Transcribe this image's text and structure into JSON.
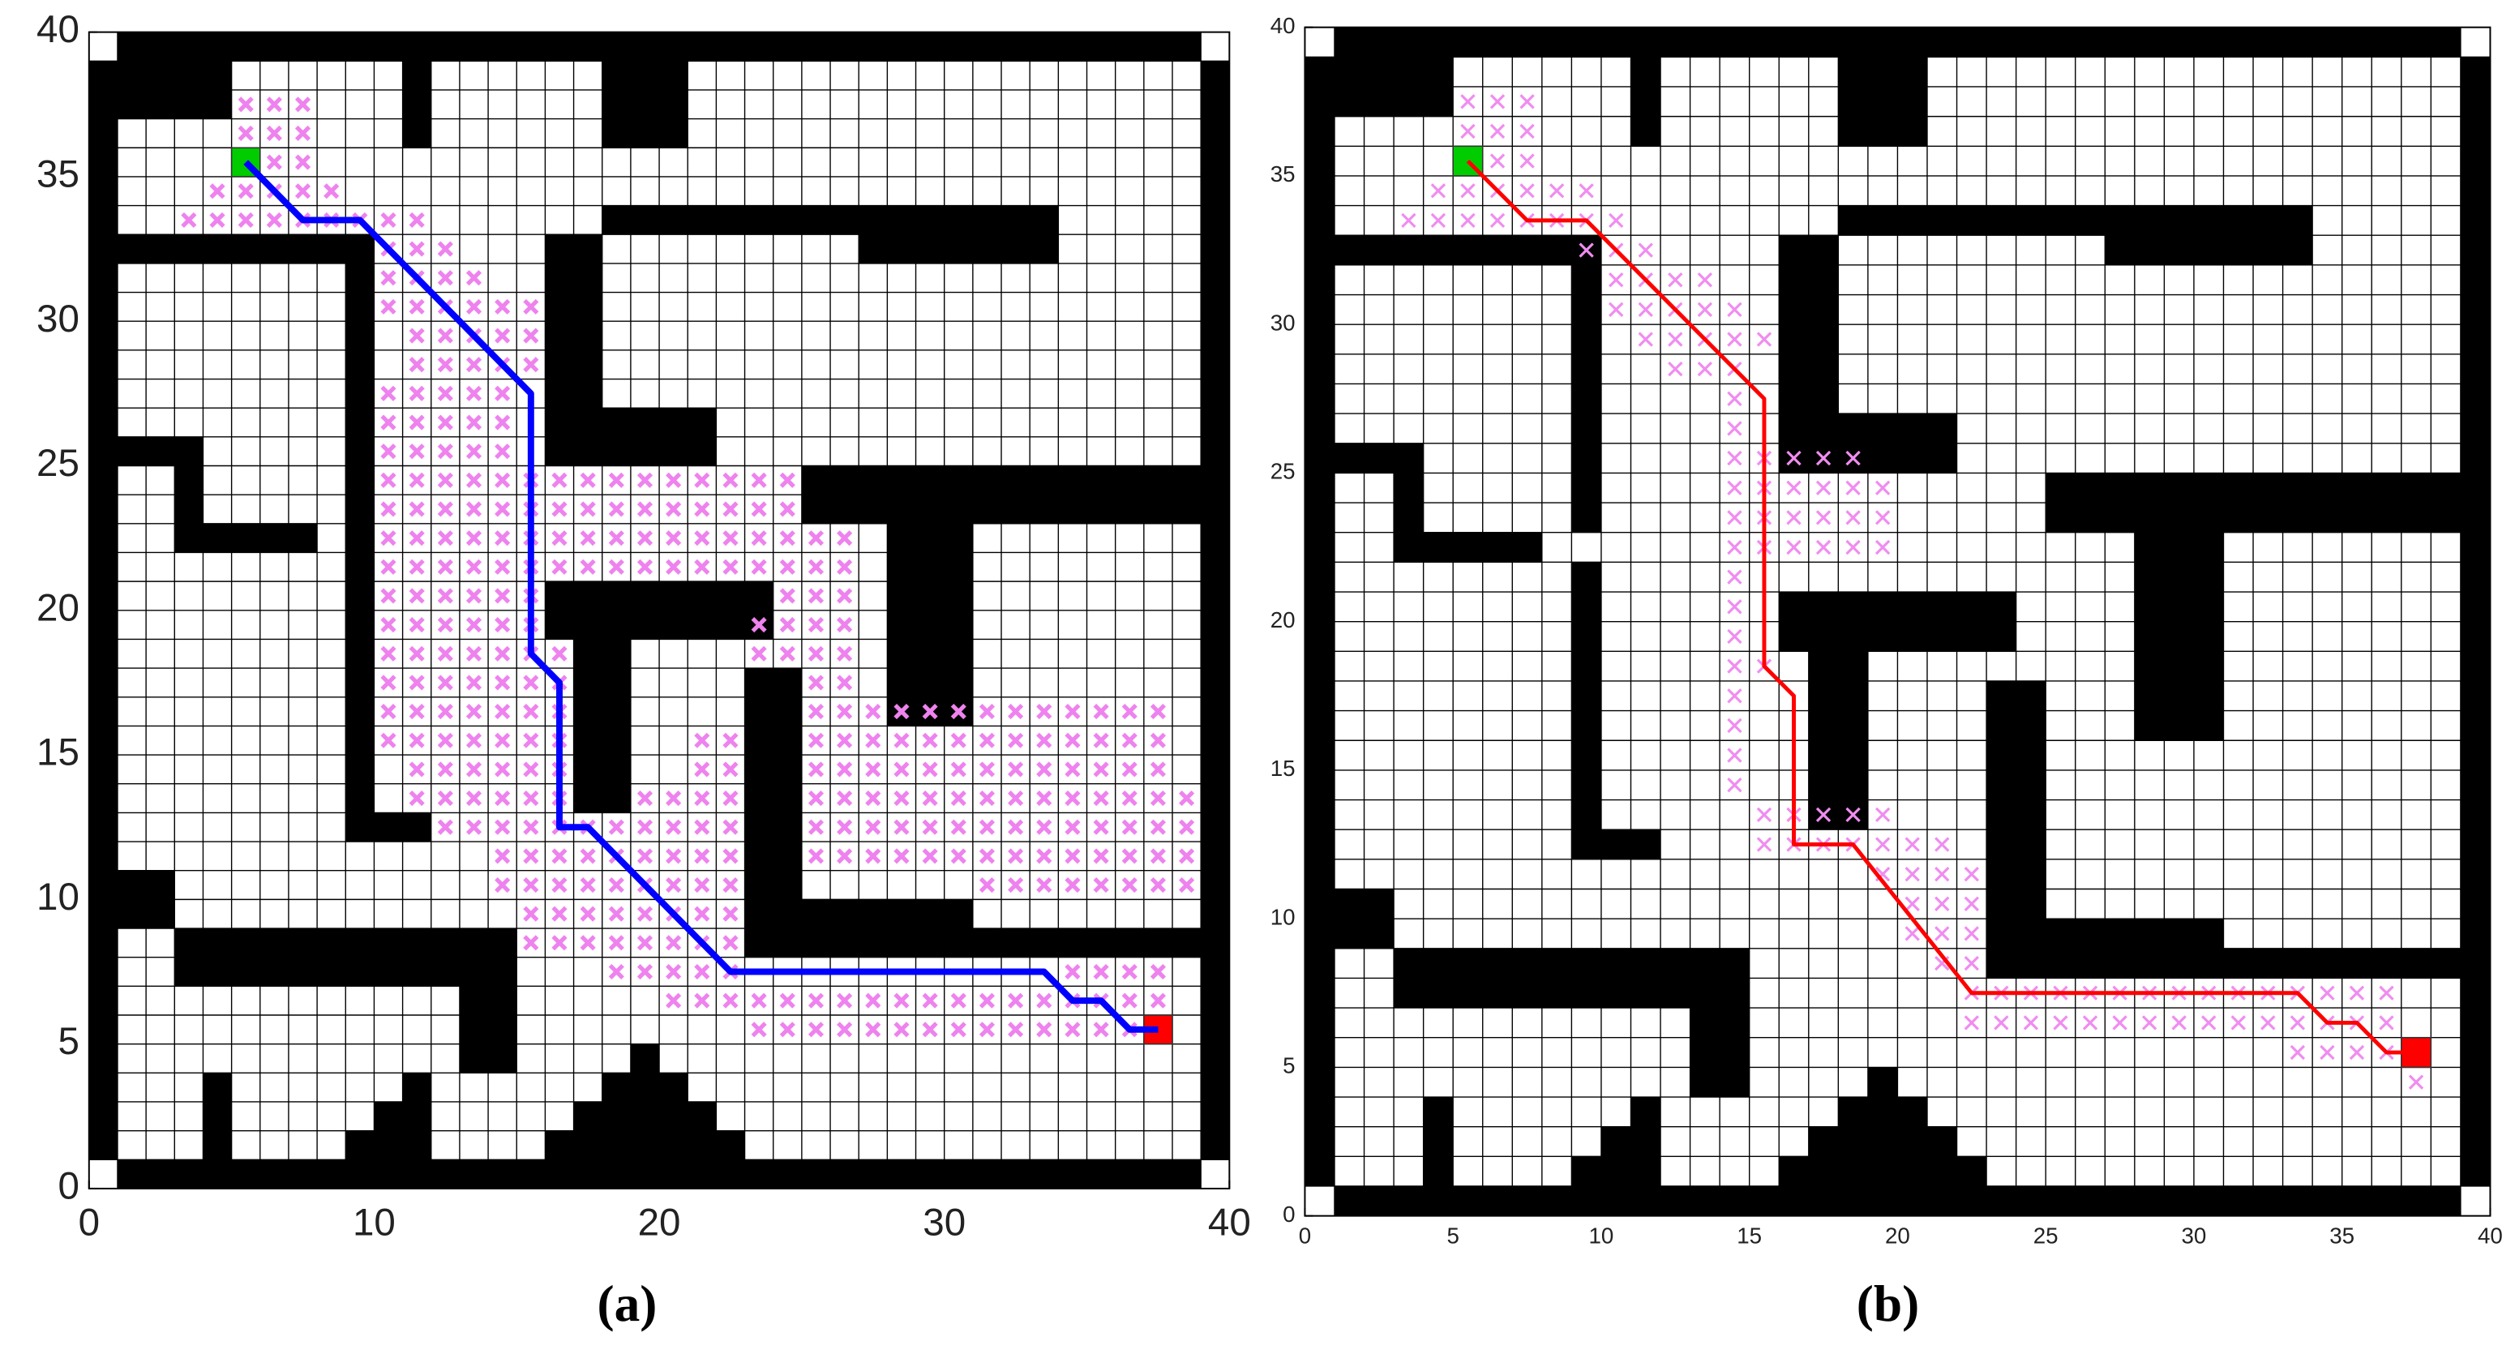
{
  "chart_data": [
    {
      "type": "grid-path",
      "label": "(a)",
      "xlim": [
        0,
        40
      ],
      "ylim": [
        0,
        40
      ],
      "xticks": [
        0,
        10,
        20,
        30,
        40
      ],
      "yticks": [
        0,
        5,
        10,
        15,
        20,
        25,
        30,
        35,
        40
      ],
      "obstacle_color": "#000000",
      "obstacles": [
        [
          1,
          39,
          39,
          40
        ],
        [
          0,
          1,
          1,
          39
        ],
        [
          1,
          0,
          39,
          1
        ],
        [
          39,
          1,
          40,
          39
        ],
        [
          1,
          37,
          5,
          39
        ],
        [
          11,
          36,
          12,
          39
        ],
        [
          18,
          36,
          21,
          39
        ],
        [
          18,
          33,
          34,
          34
        ],
        [
          27,
          32,
          34,
          33
        ],
        [
          1,
          32,
          10,
          33
        ],
        [
          9,
          12,
          10,
          32
        ],
        [
          9,
          12,
          12,
          13
        ],
        [
          16,
          25,
          18,
          33
        ],
        [
          16,
          25,
          22,
          27
        ],
        [
          1,
          25,
          4,
          26
        ],
        [
          3,
          22,
          4,
          25
        ],
        [
          3,
          22,
          8,
          23
        ],
        [
          25,
          23,
          39,
          25
        ],
        [
          28,
          16,
          31,
          23
        ],
        [
          16,
          19,
          24,
          21
        ],
        [
          17,
          13,
          19,
          19
        ],
        [
          23,
          8,
          25,
          18
        ],
        [
          23,
          8,
          39,
          9
        ],
        [
          23,
          9,
          31,
          10
        ],
        [
          1,
          9,
          3,
          11
        ],
        [
          3,
          7,
          15,
          9
        ],
        [
          13,
          4,
          15,
          7
        ],
        [
          4,
          1,
          5,
          4
        ],
        [
          9,
          1,
          12,
          2
        ],
        [
          10,
          1,
          12,
          3
        ],
        [
          11,
          1,
          12,
          4
        ],
        [
          16,
          1,
          23,
          2
        ],
        [
          17,
          1,
          22,
          3
        ],
        [
          18,
          1,
          21,
          4
        ],
        [
          19,
          1,
          20,
          5
        ]
      ],
      "visited_color": "#ee82ee",
      "visited": [
        [
          37,
          5,
          7
        ],
        [
          36,
          5,
          7
        ],
        [
          35,
          6,
          7
        ],
        [
          34,
          4,
          8
        ],
        [
          33,
          3,
          11
        ],
        [
          32,
          10,
          12
        ],
        [
          31,
          10,
          13
        ],
        [
          30,
          10,
          15
        ],
        [
          29,
          11,
          15
        ],
        [
          28,
          11,
          15
        ],
        [
          27,
          10,
          14
        ],
        [
          26,
          10,
          14
        ],
        [
          25,
          10,
          14
        ],
        [
          24,
          10,
          24
        ],
        [
          23,
          10,
          24
        ],
        [
          22,
          10,
          26
        ],
        [
          21,
          10,
          26
        ],
        [
          20,
          10,
          15
        ],
        [
          20,
          24,
          26
        ],
        [
          19,
          10,
          15
        ],
        [
          19,
          23,
          26
        ],
        [
          18,
          10,
          16
        ],
        [
          18,
          23,
          26
        ],
        [
          17,
          10,
          16
        ],
        [
          17,
          25,
          26
        ],
        [
          16,
          10,
          16
        ],
        [
          16,
          25,
          37
        ],
        [
          15,
          10,
          16
        ],
        [
          15,
          21,
          22
        ],
        [
          15,
          25,
          37
        ],
        [
          14,
          11,
          16
        ],
        [
          14,
          21,
          22
        ],
        [
          14,
          25,
          37
        ],
        [
          13,
          11,
          16
        ],
        [
          13,
          19,
          22
        ],
        [
          13,
          25,
          38
        ],
        [
          12,
          12,
          22
        ],
        [
          12,
          25,
          38
        ],
        [
          11,
          14,
          22
        ],
        [
          11,
          25,
          38
        ],
        [
          10,
          14,
          22
        ],
        [
          10,
          31,
          38
        ],
        [
          9,
          15,
          22
        ],
        [
          8,
          15,
          22
        ],
        [
          7,
          18,
          22
        ],
        [
          7,
          34,
          37
        ],
        [
          6,
          20,
          37
        ],
        [
          5,
          23,
          37
        ]
      ],
      "path": {
        "color": "#0000ff",
        "x": [
          5.5,
          7.5,
          9.5,
          15.5,
          15.5,
          16.5,
          16.5,
          17.5,
          22.5,
          33.5,
          34.5,
          35.5,
          36.5,
          37.5
        ],
        "y": [
          35.5,
          33.5,
          33.5,
          27.5,
          18.5,
          17.5,
          12.5,
          12.5,
          7.5,
          7.5,
          6.5,
          6.5,
          5.5,
          5.5
        ]
      },
      "start": {
        "color": "#00cc00",
        "x": 5,
        "y": 35
      },
      "goal": {
        "color": "#ff0000",
        "x": 37,
        "y": 5
      }
    },
    {
      "type": "grid-path",
      "label": "(b)",
      "xlim": [
        0,
        40
      ],
      "ylim": [
        0,
        40
      ],
      "xticks": [
        0,
        5,
        10,
        15,
        20,
        25,
        30,
        35,
        40
      ],
      "yticks": [
        0,
        5,
        10,
        15,
        20,
        25,
        30,
        35,
        40
      ],
      "obstacle_color": "#000000",
      "obstacles": [
        [
          1,
          39,
          39,
          40
        ],
        [
          0,
          1,
          1,
          39
        ],
        [
          1,
          0,
          39,
          1
        ],
        [
          39,
          1,
          40,
          39
        ],
        [
          1,
          37,
          5,
          39
        ],
        [
          11,
          36,
          12,
          39
        ],
        [
          18,
          36,
          21,
          39
        ],
        [
          18,
          33,
          34,
          34
        ],
        [
          27,
          32,
          34,
          33
        ],
        [
          1,
          32,
          10,
          33
        ],
        [
          9,
          23,
          10,
          32
        ],
        [
          9,
          12,
          10,
          22
        ],
        [
          9,
          12,
          12,
          13
        ],
        [
          16,
          25,
          18,
          33
        ],
        [
          16,
          25,
          22,
          27
        ],
        [
          1,
          25,
          4,
          26
        ],
        [
          3,
          22,
          4,
          25
        ],
        [
          3,
          22,
          8,
          23
        ],
        [
          25,
          23,
          39,
          25
        ],
        [
          28,
          16,
          31,
          23
        ],
        [
          16,
          19,
          24,
          21
        ],
        [
          17,
          13,
          19,
          19
        ],
        [
          23,
          8,
          25,
          18
        ],
        [
          23,
          8,
          39,
          9
        ],
        [
          23,
          9,
          31,
          10
        ],
        [
          1,
          9,
          3,
          11
        ],
        [
          3,
          7,
          15,
          9
        ],
        [
          13,
          4,
          15,
          7
        ],
        [
          4,
          1,
          5,
          4
        ],
        [
          9,
          1,
          12,
          2
        ],
        [
          10,
          1,
          12,
          3
        ],
        [
          11,
          1,
          12,
          4
        ],
        [
          16,
          1,
          23,
          2
        ],
        [
          17,
          1,
          22,
          3
        ],
        [
          18,
          1,
          21,
          4
        ],
        [
          19,
          1,
          20,
          5
        ]
      ],
      "visited_color": "#f08cf0",
      "visited": [
        [
          37,
          5,
          7
        ],
        [
          36,
          5,
          7
        ],
        [
          35,
          6,
          7
        ],
        [
          34,
          4,
          9
        ],
        [
          33,
          3,
          10
        ],
        [
          32,
          9,
          11
        ],
        [
          31,
          10,
          13
        ],
        [
          30,
          10,
          14
        ],
        [
          29,
          11,
          15
        ],
        [
          28,
          12,
          14
        ],
        [
          27,
          14,
          14
        ],
        [
          26,
          14,
          14
        ],
        [
          25,
          14,
          18
        ],
        [
          24,
          14,
          19
        ],
        [
          23,
          14,
          19
        ],
        [
          22,
          14,
          19
        ],
        [
          21,
          14,
          14
        ],
        [
          20,
          14,
          14
        ],
        [
          19,
          14,
          14
        ],
        [
          18,
          14,
          15
        ],
        [
          17,
          14,
          14
        ],
        [
          16,
          14,
          14
        ],
        [
          15,
          14,
          14
        ],
        [
          14,
          14,
          14
        ],
        [
          13,
          15,
          19
        ],
        [
          12,
          15,
          21
        ],
        [
          11,
          19,
          22
        ],
        [
          10,
          20,
          22
        ],
        [
          9,
          20,
          22
        ],
        [
          8,
          21,
          22
        ],
        [
          7,
          22,
          36
        ],
        [
          6,
          22,
          36
        ],
        [
          5,
          33,
          37
        ],
        [
          4,
          37,
          37
        ]
      ],
      "path": {
        "color": "#ff0000",
        "x": [
          5.5,
          7.5,
          9.5,
          15.5,
          15.5,
          16.5,
          16.5,
          18.5,
          22.5,
          33.5,
          34.5,
          35.5,
          36.5,
          37.5
        ],
        "y": [
          35.5,
          33.5,
          33.5,
          27.5,
          18.5,
          17.5,
          12.5,
          12.5,
          7.5,
          7.5,
          6.5,
          6.5,
          5.5,
          5.5
        ]
      },
      "start": {
        "color": "#00cc00",
        "x": 5,
        "y": 35
      },
      "goal": {
        "color": "#ff0000",
        "x": 37,
        "y": 5
      }
    }
  ]
}
